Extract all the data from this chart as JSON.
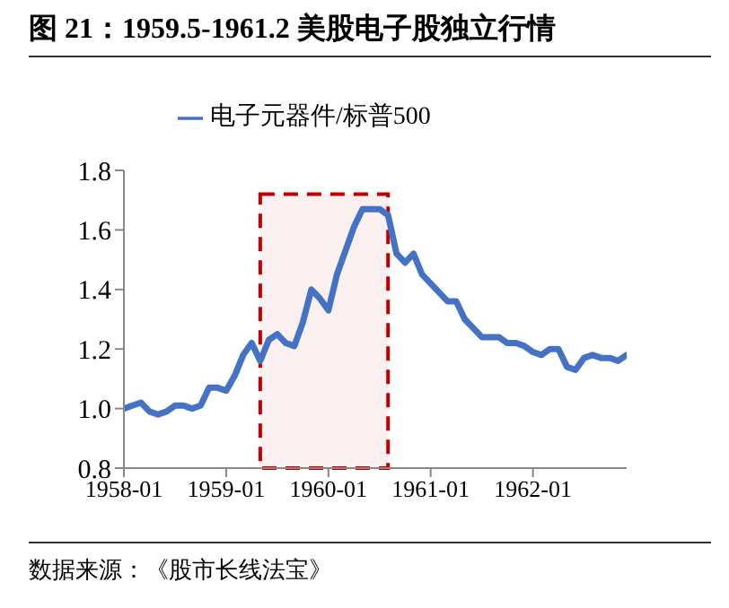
{
  "chart_data": {
    "type": "line",
    "title": "图 21：1959.5-1961.2 美股电子股独立行情",
    "x": [
      "1958-01",
      "1958-02",
      "1958-03",
      "1958-04",
      "1958-05",
      "1958-06",
      "1958-07",
      "1958-08",
      "1958-09",
      "1958-10",
      "1958-11",
      "1958-12",
      "1959-01",
      "1959-02",
      "1959-03",
      "1959-04",
      "1959-05",
      "1959-06",
      "1959-07",
      "1959-08",
      "1959-09",
      "1959-10",
      "1959-11",
      "1959-12",
      "1960-01",
      "1960-02",
      "1960-03",
      "1960-04",
      "1960-05",
      "1960-06",
      "1960-07",
      "1960-08",
      "1960-09",
      "1960-10",
      "1960-11",
      "1960-12",
      "1961-01",
      "1961-02",
      "1961-03",
      "1961-04",
      "1961-05",
      "1961-06",
      "1961-07",
      "1961-08",
      "1961-09",
      "1961-10",
      "1961-11",
      "1961-12",
      "1962-01",
      "1962-02",
      "1962-03",
      "1962-04",
      "1962-05",
      "1962-06",
      "1962-07",
      "1962-08",
      "1962-09",
      "1962-10",
      "1962-11",
      "1962-12"
    ],
    "series": [
      {
        "name": "电子元器件/标普500",
        "color": "#4472c4",
        "values": [
          1.0,
          1.01,
          1.02,
          0.99,
          0.98,
          0.99,
          1.01,
          1.01,
          1.0,
          1.01,
          1.07,
          1.07,
          1.06,
          1.11,
          1.18,
          1.22,
          1.16,
          1.23,
          1.25,
          1.22,
          1.21,
          1.29,
          1.4,
          1.37,
          1.33,
          1.45,
          1.53,
          1.61,
          1.67,
          1.67,
          1.67,
          1.65,
          1.52,
          1.49,
          1.52,
          1.45,
          1.42,
          1.39,
          1.36,
          1.36,
          1.3,
          1.27,
          1.24,
          1.24,
          1.24,
          1.22,
          1.22,
          1.21,
          1.19,
          1.18,
          1.2,
          1.2,
          1.14,
          1.13,
          1.17,
          1.18,
          1.17,
          1.17,
          1.16,
          1.18
        ]
      }
    ],
    "xlim": [
      "1958-01",
      "1962-12"
    ],
    "xticks": [
      "1958-01",
      "1959-01",
      "1960-01",
      "1961-01",
      "1962-01"
    ],
    "ylim": [
      0.8,
      1.8
    ],
    "yticks": [
      {
        "value": 0.8,
        "label": "0.8"
      },
      {
        "value": 1.0,
        "label": "1.0"
      },
      {
        "value": 1.2,
        "label": "1.2"
      },
      {
        "value": 1.4,
        "label": "1.4"
      },
      {
        "value": 1.6,
        "label": "1.6"
      },
      {
        "value": 1.8,
        "label": "1.8"
      }
    ],
    "bands": [
      {
        "axis": "x",
        "from": "1959-05",
        "to": "1960-08",
        "color": "#c00000"
      }
    ],
    "grid": false,
    "legend": "top",
    "marker": "none",
    "line_style": "solid",
    "annotations": [
      "数据来源：《股市长线法宝》"
    ]
  }
}
